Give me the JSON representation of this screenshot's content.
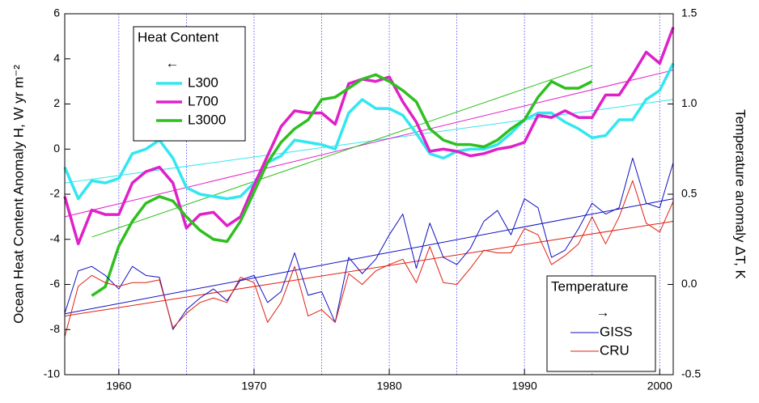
{
  "chart_data": {
    "type": "line",
    "y_label": "Ocean Heat Content Anomaly H, W yr m⁻²",
    "y2_label": "Temperature anomaly ΔT, K",
    "x": [
      1956,
      1957,
      1958,
      1959,
      1960,
      1961,
      1962,
      1963,
      1964,
      1965,
      1966,
      1967,
      1968,
      1969,
      1970,
      1971,
      1972,
      1973,
      1974,
      1975,
      1976,
      1977,
      1978,
      1979,
      1980,
      1981,
      1982,
      1983,
      1984,
      1985,
      1986,
      1987,
      1988,
      1989,
      1990,
      1991,
      1992,
      1993,
      1994,
      1995,
      1996,
      1997,
      1998,
      1999,
      2000,
      2001
    ],
    "xlim": [
      1956,
      2001
    ],
    "xticks": [
      1960,
      1970,
      1980,
      1990,
      2000
    ],
    "xgrid": [
      1960,
      1965,
      1970,
      1975,
      1980,
      1985,
      1990,
      1995,
      2000
    ],
    "xgrid_color": "#3a3af0",
    "ylim": [
      -10,
      6
    ],
    "yticks": [
      -10,
      -8,
      -6,
      -4,
      -2,
      0,
      2,
      4,
      6
    ],
    "y2lim": [
      -0.5,
      1.5
    ],
    "y2ticks": [
      -0.5,
      {
        "value": 0,
        "label": "0.0"
      },
      0.5,
      {
        "value": 1,
        "label": "1.0"
      },
      1.5
    ],
    "series": [
      {
        "name": "L300",
        "color": "#33e6f0",
        "axis": "y",
        "values": [
          -0.8,
          -2.2,
          -1.4,
          -1.5,
          -1.3,
          -0.2,
          0.0,
          0.4,
          -0.4,
          -1.7,
          -2.0,
          -2.1,
          -2.2,
          -2.1,
          -1.5,
          -0.6,
          -0.3,
          0.4,
          0.3,
          0.2,
          0.0,
          1.6,
          2.2,
          1.8,
          1.8,
          1.5,
          0.7,
          -0.2,
          -0.4,
          -0.1,
          0.0,
          0.0,
          0.2,
          0.7,
          1.3,
          1.6,
          1.6,
          1.2,
          0.9,
          0.5,
          0.6,
          1.3,
          1.3,
          2.2,
          2.6,
          3.8
        ]
      },
      {
        "name": "L700",
        "color": "#e020c8",
        "axis": "y",
        "values": [
          -2.1,
          -4.2,
          -2.7,
          -2.9,
          -2.9,
          -1.5,
          -1.0,
          -0.8,
          -1.5,
          -3.5,
          -2.9,
          -2.8,
          -3.4,
          -3.0,
          -1.6,
          -0.3,
          1.0,
          1.7,
          1.6,
          1.6,
          1.1,
          2.9,
          3.1,
          3.0,
          3.2,
          2.1,
          1.2,
          -0.1,
          0.0,
          -0.1,
          -0.3,
          -0.2,
          0.0,
          0.1,
          0.3,
          1.5,
          1.4,
          1.7,
          1.4,
          1.4,
          2.4,
          2.4,
          3.3,
          4.3,
          3.8,
          5.4
        ]
      },
      {
        "name": "L3000",
        "color": "#2fbf20",
        "axis": "y",
        "values": [
          null,
          null,
          -6.5,
          -6.1,
          -4.3,
          -3.2,
          -2.4,
          -2.1,
          -2.3,
          -3.0,
          -3.6,
          -4.0,
          -4.1,
          -3.2,
          -1.9,
          -0.6,
          0.3,
          0.9,
          1.3,
          2.2,
          2.3,
          2.7,
          3.1,
          3.3,
          3.0,
          2.6,
          2.1,
          0.9,
          0.4,
          0.2,
          0.2,
          0.1,
          0.4,
          0.9,
          1.3,
          2.3,
          3.0,
          2.7,
          2.7,
          3.0,
          null,
          null,
          null,
          null,
          null,
          null
        ]
      },
      {
        "name": "GISS",
        "color": "#1010c0",
        "axis": "y2",
        "values": [
          -0.16,
          0.075,
          0.1,
          0.05,
          -0.025,
          0.1,
          0.05,
          0.04,
          -0.25,
          -0.14,
          -0.075,
          -0.025,
          -0.09,
          0.025,
          0.05,
          -0.1,
          -0.04,
          0.175,
          -0.06,
          -0.04,
          -0.21,
          0.15,
          0.06,
          0.14,
          0.275,
          0.39,
          0.09,
          0.34,
          0.15,
          0.11,
          0.2,
          0.35,
          0.41,
          0.275,
          0.475,
          0.425,
          0.15,
          0.19,
          0.31,
          0.45,
          0.39,
          0.425,
          0.7,
          0.45,
          0.425,
          0.675
        ]
      },
      {
        "name": "CRU",
        "color": "#e02010",
        "axis": "y2",
        "values": [
          -0.29,
          -0.01,
          0.05,
          0.01,
          -0.01,
          0.01,
          0.01,
          0.025,
          -0.24,
          -0.16,
          -0.1,
          -0.075,
          -0.1,
          0.04,
          0.01,
          -0.21,
          -0.1,
          0.1,
          -0.175,
          -0.14,
          -0.21,
          0.06,
          0.0,
          0.075,
          0.11,
          0.14,
          0.01,
          0.21,
          0.01,
          0.0,
          0.09,
          0.19,
          0.175,
          0.175,
          0.31,
          0.275,
          0.11,
          0.16,
          0.225,
          0.375,
          0.225,
          0.375,
          0.575,
          0.34,
          0.29,
          0.46
        ]
      }
    ],
    "trends": [
      {
        "color": "#33e6f0",
        "axis": "y",
        "x": [
          1956,
          2001
        ],
        "values": [
          -1.5,
          2.2
        ]
      },
      {
        "color": "#e020c8",
        "axis": "y",
        "x": [
          1956,
          2001
        ],
        "values": [
          -3.0,
          3.5
        ]
      },
      {
        "color": "#2fbf20",
        "axis": "y",
        "x": [
          1958,
          1995
        ],
        "values": [
          -3.9,
          3.7
        ]
      },
      {
        "color": "#1010c0",
        "axis": "y2",
        "x": [
          1956,
          2001
        ],
        "values": [
          -0.1625,
          0.475
        ]
      },
      {
        "color": "#e02010",
        "axis": "y2",
        "x": [
          1956,
          2001
        ],
        "values": [
          -0.175,
          0.35
        ]
      }
    ],
    "legends": [
      {
        "title": "Heat Content",
        "arrow": "←",
        "axis": "y",
        "corner": "upper left"
      },
      {
        "title": "Temperature",
        "arrow": "→",
        "axis": "y2",
        "corner": "lower right"
      }
    ]
  }
}
